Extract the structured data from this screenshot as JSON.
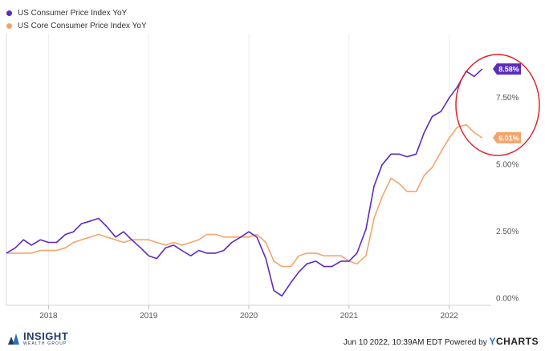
{
  "legend": [
    {
      "label": "US Consumer Price Index YoY",
      "color": "#5b2bc0"
    },
    {
      "label": "US Core Consumer Price Index YoY",
      "color": "#f4a46b"
    }
  ],
  "footer": {
    "timestamp": "Jun 10 2022, 10:39AM EDT  Powered by",
    "brand_y": "Y",
    "brand_rest": "CHARTS"
  },
  "logo": {
    "name": "INSIGHT",
    "tagline": "WEALTH GROUP"
  },
  "annotation_color": "#e0242b",
  "chart_data": {
    "type": "line",
    "xlim": [
      2017.58,
      2022.42
    ],
    "ylim": [
      -0.25,
      9.9
    ],
    "x_ticks": [
      {
        "x": 2018,
        "label": "2018"
      },
      {
        "x": 2019,
        "label": "2019"
      },
      {
        "x": 2020,
        "label": "2020"
      },
      {
        "x": 2021,
        "label": "2021"
      },
      {
        "x": 2022,
        "label": "2022"
      }
    ],
    "y_ticks": [
      {
        "y": 0.0,
        "label": "0.00%"
      },
      {
        "y": 2.5,
        "label": "2.50%"
      },
      {
        "y": 5.0,
        "label": "5.00%"
      },
      {
        "y": 7.5,
        "label": "7.50%"
      }
    ],
    "grid": "vertical",
    "legend_position": "top-left",
    "series": [
      {
        "name": "US Consumer Price Index YoY",
        "color": "#5b2bc0",
        "end_label": "8.58%",
        "x": [
          2017.58,
          2017.67,
          2017.75,
          2017.83,
          2017.92,
          2018.0,
          2018.08,
          2018.17,
          2018.25,
          2018.33,
          2018.42,
          2018.5,
          2018.58,
          2018.67,
          2018.75,
          2018.83,
          2018.92,
          2019.0,
          2019.08,
          2019.17,
          2019.25,
          2019.33,
          2019.42,
          2019.5,
          2019.58,
          2019.67,
          2019.75,
          2019.83,
          2019.92,
          2020.0,
          2020.08,
          2020.17,
          2020.25,
          2020.33,
          2020.42,
          2020.5,
          2020.58,
          2020.67,
          2020.75,
          2020.83,
          2020.92,
          2021.0,
          2021.08,
          2021.17,
          2021.25,
          2021.33,
          2021.42,
          2021.5,
          2021.58,
          2021.67,
          2021.75,
          2021.83,
          2021.92,
          2022.0,
          2022.08,
          2022.17,
          2022.25,
          2022.33
        ],
        "y": [
          1.7,
          1.9,
          2.2,
          2.0,
          2.2,
          2.1,
          2.1,
          2.4,
          2.5,
          2.8,
          2.9,
          3.0,
          2.7,
          2.3,
          2.5,
          2.2,
          1.9,
          1.6,
          1.5,
          1.9,
          2.0,
          1.8,
          1.6,
          1.8,
          1.7,
          1.7,
          1.8,
          2.1,
          2.3,
          2.5,
          2.3,
          1.5,
          0.3,
          0.1,
          0.6,
          1.0,
          1.3,
          1.4,
          1.2,
          1.2,
          1.4,
          1.4,
          1.7,
          2.6,
          4.2,
          5.0,
          5.4,
          5.4,
          5.3,
          5.4,
          6.2,
          6.8,
          7.0,
          7.5,
          7.9,
          8.5,
          8.3,
          8.58
        ]
      },
      {
        "name": "US Core Consumer Price Index YoY",
        "color": "#f4a46b",
        "end_label": "6.01%",
        "x": [
          2017.58,
          2017.67,
          2017.75,
          2017.83,
          2017.92,
          2018.0,
          2018.08,
          2018.17,
          2018.25,
          2018.33,
          2018.42,
          2018.5,
          2018.58,
          2018.67,
          2018.75,
          2018.83,
          2018.92,
          2019.0,
          2019.08,
          2019.17,
          2019.25,
          2019.33,
          2019.42,
          2019.5,
          2019.58,
          2019.67,
          2019.75,
          2019.83,
          2019.92,
          2020.0,
          2020.08,
          2020.17,
          2020.25,
          2020.33,
          2020.42,
          2020.5,
          2020.58,
          2020.67,
          2020.75,
          2020.83,
          2020.92,
          2021.0,
          2021.08,
          2021.17,
          2021.25,
          2021.33,
          2021.42,
          2021.5,
          2021.58,
          2021.67,
          2021.75,
          2021.83,
          2021.92,
          2022.0,
          2022.08,
          2022.17,
          2022.25,
          2022.33
        ],
        "y": [
          1.7,
          1.7,
          1.7,
          1.7,
          1.8,
          1.8,
          1.8,
          1.9,
          2.1,
          2.2,
          2.3,
          2.4,
          2.3,
          2.2,
          2.1,
          2.2,
          2.2,
          2.2,
          2.1,
          2.0,
          2.1,
          2.0,
          2.1,
          2.2,
          2.4,
          2.4,
          2.3,
          2.3,
          2.3,
          2.3,
          2.4,
          2.1,
          1.4,
          1.2,
          1.2,
          1.6,
          1.7,
          1.7,
          1.6,
          1.6,
          1.6,
          1.4,
          1.3,
          1.6,
          3.0,
          3.8,
          4.5,
          4.3,
          4.0,
          4.0,
          4.6,
          4.9,
          5.5,
          6.0,
          6.4,
          6.5,
          6.2,
          6.01
        ]
      }
    ]
  }
}
